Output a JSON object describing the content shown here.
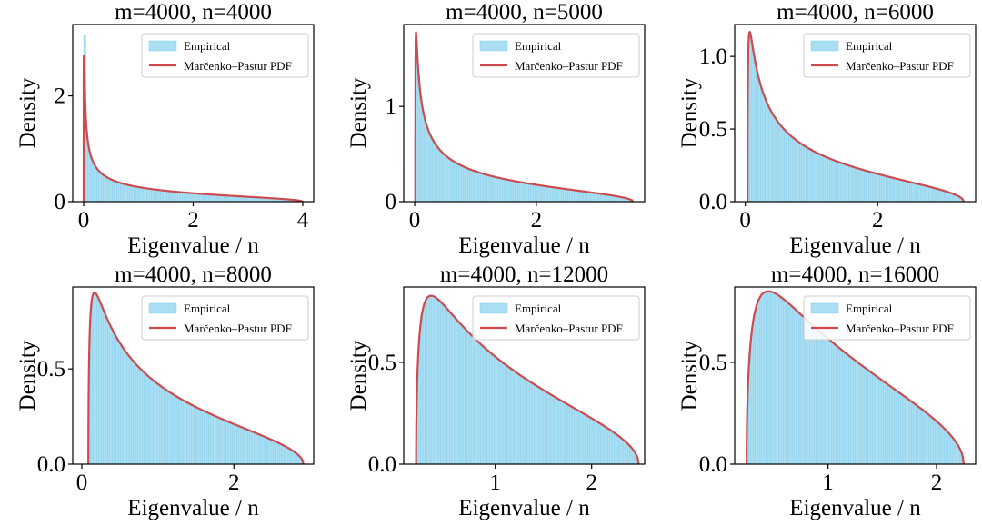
{
  "colors": {
    "hist_fill": "#a9def3",
    "hist_edge": "#87ceeb",
    "pdf_line": "#cd4b4e",
    "axis": "#000000"
  },
  "chart_data": [
    {
      "type": "histogram+line",
      "title": "m=4000, n=4000",
      "xlabel": "Eigenvalue / n",
      "ylabel": "Density",
      "m": 4000,
      "n": 4000,
      "xlim": [
        -0.2,
        4.2
      ],
      "ylim": [
        0,
        3.35
      ],
      "xticks": [
        0,
        2,
        4
      ],
      "xticklabels": [
        "0",
        "2",
        "4"
      ],
      "yticks": [
        0,
        2
      ],
      "yticklabels": [
        "0",
        "2"
      ],
      "legend": {
        "loc": "upper right",
        "entries": [
          "Empirical",
          "Marčenko–Pastur PDF"
        ]
      },
      "series": [
        {
          "name": "Empirical",
          "kind": "hist",
          "peak_value": 3.15
        },
        {
          "name": "Marčenko–Pastur PDF",
          "kind": "line",
          "support": [
            0,
            4
          ],
          "peak_value": 2.75
        }
      ]
    },
    {
      "type": "histogram+line",
      "title": "m=4000, n=5000",
      "xlabel": "Eigenvalue / n",
      "ylabel": "Density",
      "m": 4000,
      "n": 5000,
      "xlim": [
        -0.18,
        3.78
      ],
      "ylim": [
        0,
        1.86
      ],
      "xticks": [
        0,
        2
      ],
      "xticklabels": [
        "0",
        "2"
      ],
      "yticks": [
        0,
        1
      ],
      "yticklabels": [
        "0",
        "1"
      ],
      "legend": {
        "loc": "upper right",
        "entries": [
          "Empirical",
          "Marčenko–Pastur PDF"
        ]
      },
      "series": [
        {
          "name": "Empirical",
          "kind": "hist"
        },
        {
          "name": "Marčenko–Pastur PDF",
          "kind": "line",
          "support": [
            0.012,
            3.588
          ],
          "peak_value": 1.77
        }
      ]
    },
    {
      "type": "histogram+line",
      "title": "m=4000, n=6000",
      "xlabel": "Eigenvalue / n",
      "ylabel": "Density",
      "m": 4000,
      "n": 6000,
      "xlim": [
        -0.16,
        3.48
      ],
      "ylim": [
        0,
        1.22
      ],
      "xticks": [
        0,
        2
      ],
      "xticklabels": [
        "0",
        "2"
      ],
      "yticks": [
        0,
        0.5,
        1.0
      ],
      "yticklabels": [
        "0.0",
        "0.5",
        "1.0"
      ],
      "legend": {
        "loc": "upper right",
        "entries": [
          "Empirical",
          "Marčenko–Pastur PDF"
        ]
      },
      "series": [
        {
          "name": "Empirical",
          "kind": "hist"
        },
        {
          "name": "Marčenko–Pastur PDF",
          "kind": "line",
          "support": [
            0.035,
            3.298
          ],
          "peak_value": 1.16
        }
      ]
    },
    {
      "type": "histogram+line",
      "title": "m=4000, n=8000",
      "xlabel": "Eigenvalue / n",
      "ylabel": "Density",
      "m": 4000,
      "n": 8000,
      "xlim": [
        -0.12,
        3.05
      ],
      "ylim": [
        0,
        0.93
      ],
      "xticks": [
        0,
        2
      ],
      "xticklabels": [
        "0",
        "2"
      ],
      "yticks": [
        0,
        0.5
      ],
      "yticklabels": [
        "0.0",
        "0.5"
      ],
      "legend": {
        "loc": "upper right",
        "entries": [
          "Empirical",
          "Marčenko–Pastur PDF"
        ]
      },
      "series": [
        {
          "name": "Empirical",
          "kind": "hist"
        },
        {
          "name": "Marčenko–Pastur PDF",
          "kind": "line",
          "support": [
            0.086,
            2.914
          ],
          "peak_value": 0.89
        }
      ]
    },
    {
      "type": "histogram+line",
      "title": "m=4000, n=12000",
      "xlabel": "Eigenvalue / n",
      "ylabel": "Density",
      "m": 4000,
      "n": 12000,
      "xlim": [
        0.05,
        2.55
      ],
      "ylim": [
        0,
        0.87
      ],
      "xticks": [
        1,
        2
      ],
      "xticklabels": [
        "1",
        "2"
      ],
      "yticks": [
        0,
        0.5
      ],
      "yticklabels": [
        "0.0",
        "0.5"
      ],
      "legend": {
        "loc": "upper right",
        "entries": [
          "Empirical",
          "Marčenko–Pastur PDF"
        ]
      },
      "series": [
        {
          "name": "Empirical",
          "kind": "hist"
        },
        {
          "name": "Marčenko–Pastur PDF",
          "kind": "line",
          "support": [
            0.179,
            2.488
          ],
          "peak_value": 0.82
        }
      ]
    },
    {
      "type": "histogram+line",
      "title": "m=4000, n=16000",
      "xlabel": "Eigenvalue / n",
      "ylabel": "Density",
      "m": 4000,
      "n": 16000,
      "xlim": [
        0.14,
        2.36
      ],
      "ylim": [
        0,
        0.87
      ],
      "xticks": [
        1,
        2
      ],
      "xticklabels": [
        "1",
        "2"
      ],
      "yticks": [
        0,
        0.5
      ],
      "yticklabels": [
        "0.0",
        "0.5"
      ],
      "legend": {
        "loc": "upper right",
        "entries": [
          "Empirical",
          "Marčenko–Pastur PDF"
        ]
      },
      "series": [
        {
          "name": "Empirical",
          "kind": "hist"
        },
        {
          "name": "Marčenko–Pastur PDF",
          "kind": "line",
          "support": [
            0.25,
            2.25
          ],
          "peak_value": 0.83
        }
      ]
    }
  ]
}
